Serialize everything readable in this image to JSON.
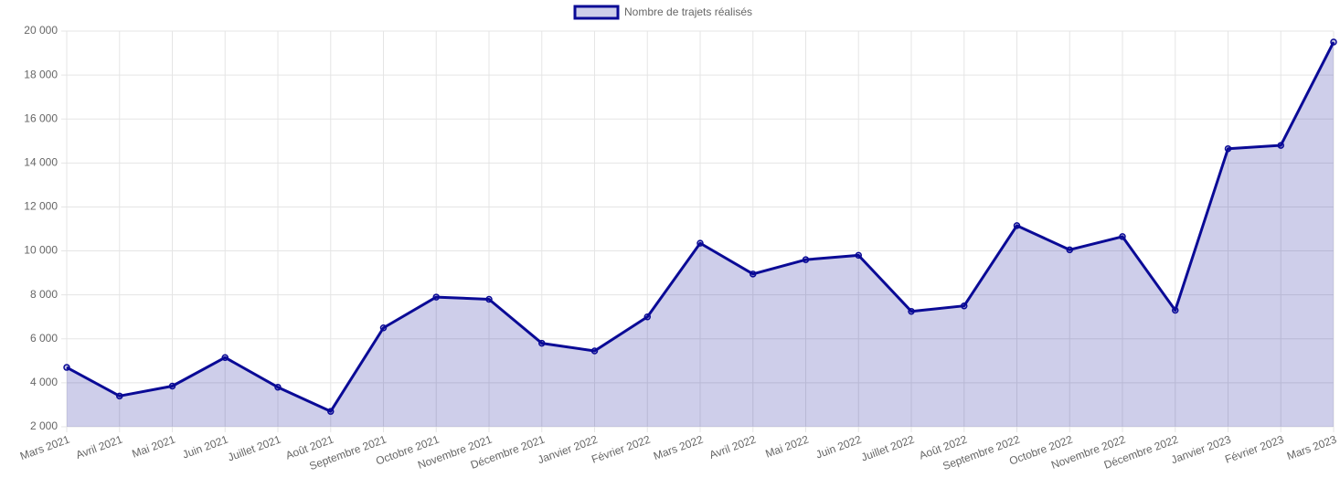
{
  "chart_data": {
    "type": "line",
    "categories": [
      "Mars 2021",
      "Avril 2021",
      "Mai 2021",
      "Juin 2021",
      "Juillet 2021",
      "Août 2021",
      "Septembre 2021",
      "Octobre 2021",
      "Novembre 2021",
      "Décembre 2021",
      "Janvier 2022",
      "Février 2022",
      "Mars 2022",
      "Avril 2022",
      "Mai 2022",
      "Juin 2022",
      "Juillet 2022",
      "Août 2022",
      "Septembre 2022",
      "Octobre 2022",
      "Novembre 2022",
      "Décembre 2022",
      "Janvier 2023",
      "Février 2023",
      "Mars 2023"
    ],
    "series": [
      {
        "name": "Nombre de trajets réalisés",
        "color": "#0a0a96",
        "fill": "rgba(10,10,150,0.2)",
        "values": [
          4700,
          3400,
          3850,
          5150,
          3800,
          2700,
          6500,
          7900,
          7800,
          5800,
          5450,
          7000,
          10350,
          8950,
          9600,
          9800,
          7250,
          7500,
          11150,
          10050,
          10650,
          7300,
          14650,
          14800,
          19500
        ]
      }
    ],
    "ylim": [
      2000,
      20000
    ],
    "yticks": [
      {
        "value": 2000,
        "label": "2 000"
      },
      {
        "value": 4000,
        "label": "4 000"
      },
      {
        "value": 6000,
        "label": "6 000"
      },
      {
        "value": 8000,
        "label": "8 000"
      },
      {
        "value": 10000,
        "label": "10 000"
      },
      {
        "value": 12000,
        "label": "12 000"
      },
      {
        "value": 14000,
        "label": "14 000"
      },
      {
        "value": 16000,
        "label": "16 000"
      },
      {
        "value": 18000,
        "label": "18 000"
      },
      {
        "value": 20000,
        "label": "20 000"
      }
    ],
    "grid": true,
    "legend": "top"
  }
}
